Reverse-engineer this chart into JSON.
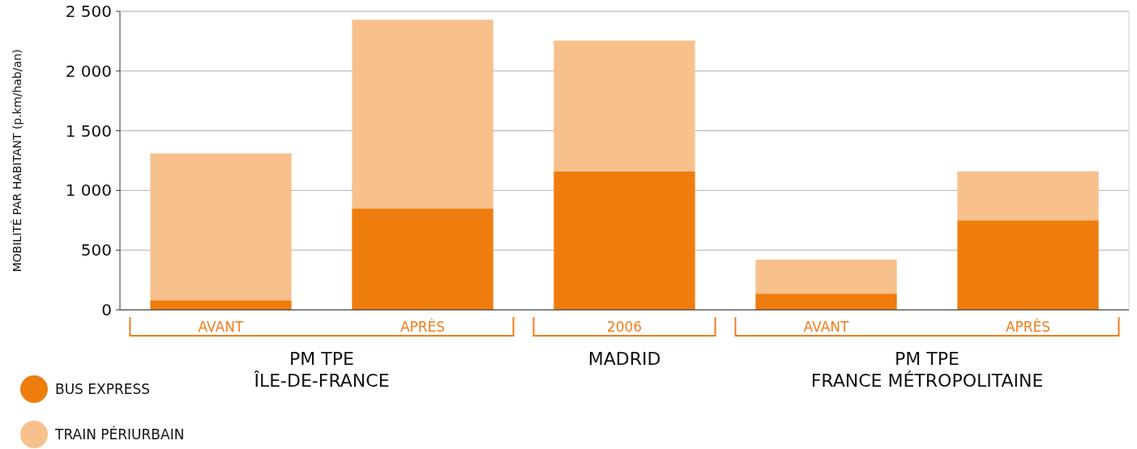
{
  "chart_data": {
    "type": "bar",
    "stacked": true,
    "ylabel": "MOBILITÉ PAR HABITANT (p.km/hab/an)",
    "categories": [
      "AVANT",
      "APRÈS",
      "2006",
      "AVANT",
      "APRÈS"
    ],
    "series": [
      {
        "name": "BUS EXPRESS",
        "color": "#ef7d0e",
        "values": [
          80,
          850,
          1160,
          135,
          750
        ]
      },
      {
        "name": "TRAIN PÉRIURBAIN",
        "color": "#f7c08c",
        "values": [
          1230,
          1580,
          1095,
          285,
          410
        ]
      }
    ],
    "ylim": [
      0,
      2500
    ],
    "yticks": [
      {
        "value": 0,
        "label": "0"
      },
      {
        "value": 500,
        "label": "500"
      },
      {
        "value": 1000,
        "label": "1 000"
      },
      {
        "value": 1500,
        "label": "1 500"
      },
      {
        "value": 2000,
        "label": "2 000"
      },
      {
        "value": 2500,
        "label": "2 500"
      }
    ],
    "grid": "y",
    "legend": "bottom left",
    "annotations": [
      "PM TPE\nÎLE-DE-FRANCE",
      "MADRID",
      "PM TPE\nFRANCE MÉTROPOLITAINE"
    ]
  }
}
